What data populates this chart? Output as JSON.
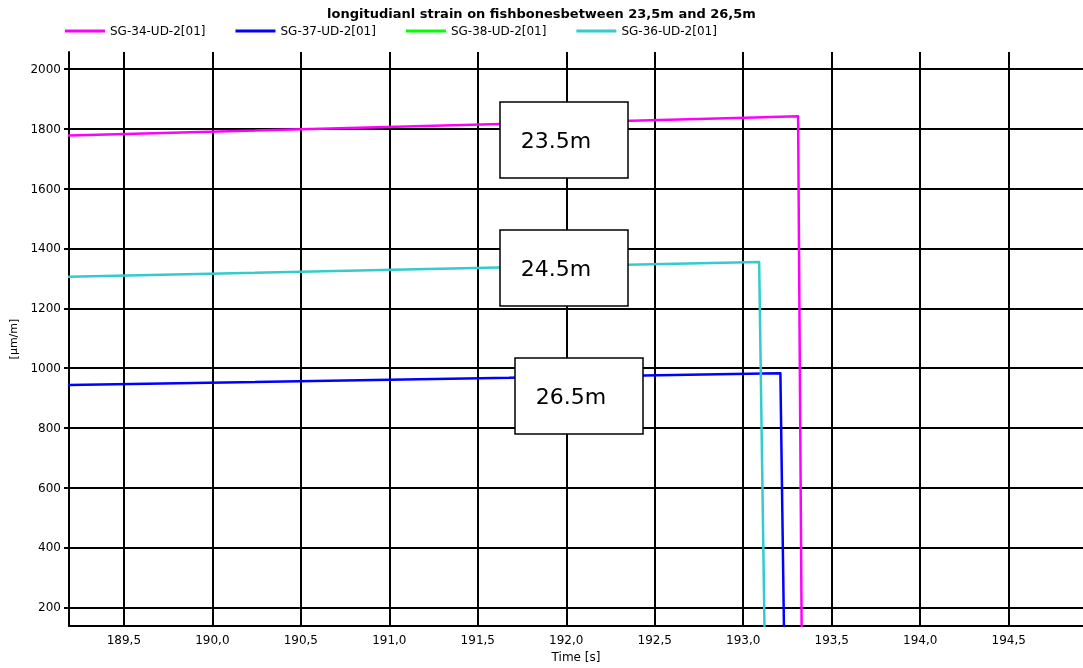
{
  "chart_data": {
    "type": "line",
    "title": "longitudianl strain on fishbonesbetween 23,5m and 26,5m",
    "xlabel": "Time [s]",
    "ylabel": "[µm/m]",
    "xlim": [
      189.19,
      194.92
    ],
    "ylim": [
      137,
      2057
    ],
    "xticks": [
      {
        "value": 189.5,
        "label": "189,5"
      },
      {
        "value": 190.0,
        "label": "190,0"
      },
      {
        "value": 190.5,
        "label": "190,5"
      },
      {
        "value": 191.0,
        "label": "191,0"
      },
      {
        "value": 191.5,
        "label": "191,5"
      },
      {
        "value": 192.0,
        "label": "192,0"
      },
      {
        "value": 192.5,
        "label": "192,5"
      },
      {
        "value": 193.0,
        "label": "193,0"
      },
      {
        "value": 193.5,
        "label": "193,5"
      },
      {
        "value": 194.0,
        "label": "194,0"
      },
      {
        "value": 194.5,
        "label": "194,5"
      }
    ],
    "yticks": [
      200,
      400,
      600,
      800,
      1000,
      1200,
      1400,
      1600,
      1800,
      2000
    ],
    "grid": true,
    "legend": "top",
    "marker": "none",
    "line_style": "solid",
    "series": [
      {
        "name": "SG-34-UD-2[01]",
        "color": "#ff00ff",
        "x": [
          189.19,
          193.31,
          193.33
        ],
        "values": [
          1778,
          1842,
          137
        ]
      },
      {
        "name": "SG-37-UD-2[01]",
        "color": "#0000ff",
        "x": [
          189.19,
          193.21,
          193.23
        ],
        "values": [
          943,
          983,
          137
        ]
      },
      {
        "name": "SG-38-UD-2[01]",
        "color": "#00ff00"
      },
      {
        "name": "SG-36-UD-2[01]",
        "color": "#33cccc",
        "x": [
          189.19,
          193.09,
          193.12
        ],
        "values": [
          1305,
          1355,
          137
        ]
      }
    ],
    "annotations": [
      "23.5m",
      "24.5m",
      "26.5m"
    ]
  }
}
